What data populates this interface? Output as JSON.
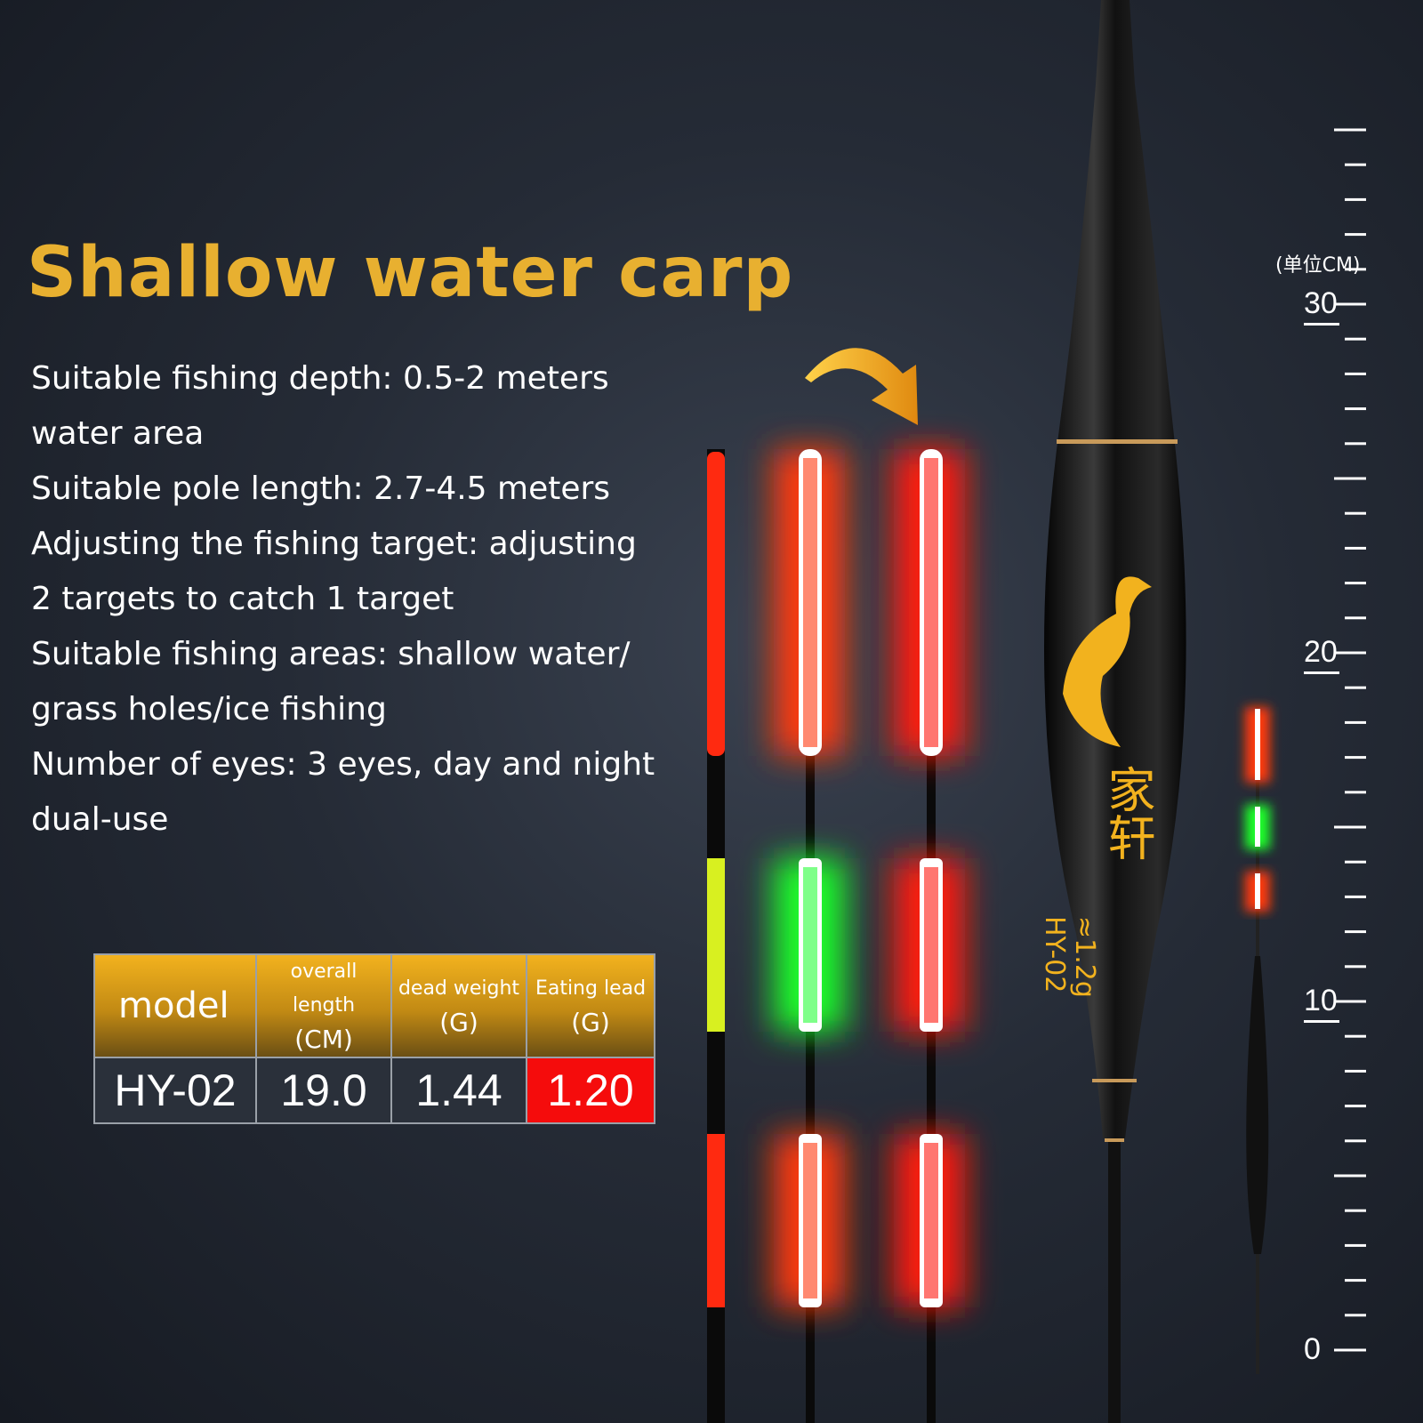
{
  "heading": "Shallow water carp",
  "specs": [
    "Suitable fishing depth: 0.5-2 meters",
    "water area",
    "Suitable pole length: 2.7-4.5 meters",
    "Adjusting the fishing target: adjusting",
    "2 targets to catch 1 target",
    "Suitable fishing areas: shallow water/",
    "grass holes/ice fishing",
    "Number of eyes: 3 eyes, day and night",
    "dual-use"
  ],
  "table": {
    "headers": [
      {
        "line1": "model",
        "line2": ""
      },
      {
        "line1": "overall length",
        "line2": "(CM)"
      },
      {
        "line1": "dead weight",
        "line2": "(G)"
      },
      {
        "line1": "Eating lead",
        "line2": "(G)"
      }
    ],
    "row": [
      "HY-02",
      "19.0",
      "1.44",
      "1.20"
    ],
    "highlight_color": "#f50c0c"
  },
  "float": {
    "brand": "家轩",
    "weight": "≈1.2g",
    "model": "HY-02"
  },
  "ruler": {
    "unit": "(单位CM)",
    "labels": [
      "30",
      "20",
      "10",
      "0"
    ]
  },
  "colors": {
    "title": "#e8b030",
    "gold": "#f2b21e",
    "red_light": "#ff3a1a",
    "green_light": "#2aff3a",
    "yellow_band": "#d8f020"
  }
}
